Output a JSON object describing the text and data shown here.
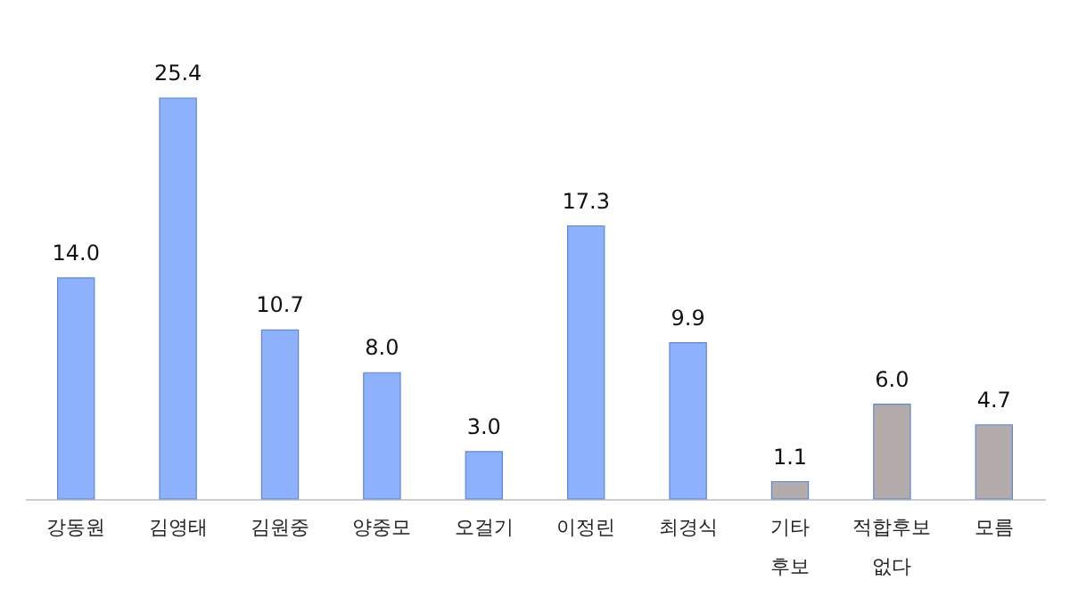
{
  "chart_data": {
    "type": "bar",
    "categories": [
      "강동원",
      "김영태",
      "김원중",
      "양중모",
      "오걸기",
      "이정린",
      "최경식",
      "기타\n후보",
      "적합후보\n없다",
      "모름"
    ],
    "values": [
      14.0,
      25.4,
      10.7,
      8.0,
      3.0,
      17.3,
      9.9,
      1.1,
      6.0,
      4.7
    ],
    "colors": [
      "#8db2fb",
      "#8db2fb",
      "#8db2fb",
      "#8db2fb",
      "#8db2fb",
      "#8db2fb",
      "#8db2fb",
      "#b3acab",
      "#b3acab",
      "#b3acab"
    ],
    "value_labels": [
      "14.0",
      "25.4",
      "10.7",
      "8.0",
      "3.0",
      "17.3",
      "9.9",
      "1.1",
      "6.0",
      "4.7"
    ],
    "grid": false
  }
}
